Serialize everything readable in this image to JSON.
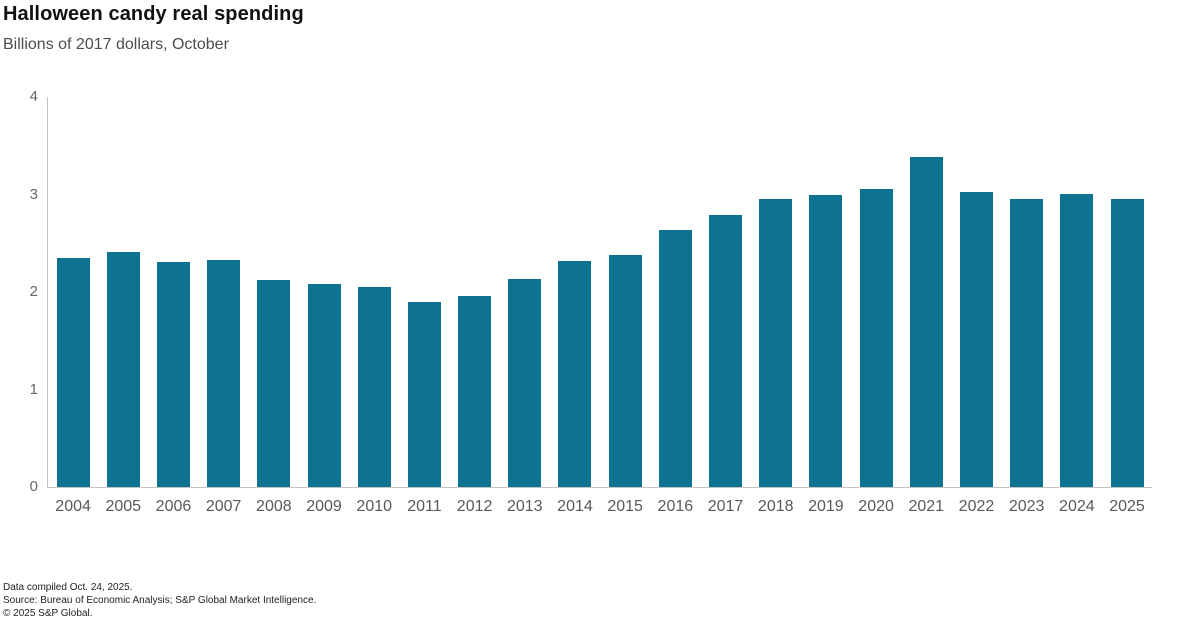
{
  "header": {
    "title": "Halloween candy real spending",
    "subtitle": "Billions of 2017 dollars, October"
  },
  "chart_data": {
    "type": "bar",
    "title": "Halloween candy real spending",
    "subtitle": "Billions of 2017 dollars, October",
    "categories": [
      "2004",
      "2005",
      "2006",
      "2007",
      "2008",
      "2009",
      "2010",
      "2011",
      "2012",
      "2013",
      "2014",
      "2015",
      "2016",
      "2017",
      "2018",
      "2019",
      "2020",
      "2021",
      "2022",
      "2023",
      "2024",
      "2025"
    ],
    "values": [
      2.35,
      2.41,
      2.31,
      2.33,
      2.12,
      2.08,
      2.05,
      1.9,
      1.96,
      2.13,
      2.32,
      2.38,
      2.64,
      2.79,
      2.95,
      2.99,
      3.06,
      3.38,
      3.03,
      2.95,
      3.01,
      2.95
    ],
    "xlabel": "",
    "ylabel": "",
    "ylim": [
      0,
      4
    ],
    "yticks": [
      0,
      1,
      2,
      3,
      4
    ],
    "bar_color": "#0d7390",
    "axis_color": "#c4c4c4",
    "tick_label_color": "#666666",
    "grid": false,
    "legend_position": "none"
  },
  "footer": {
    "line1": "Data compiled Oct. 24, 2025.",
    "line2": "Source: Bureau of Economic Analysis; S&P Global Market Intelligence.",
    "line3": "© 2025 S&P Global."
  }
}
